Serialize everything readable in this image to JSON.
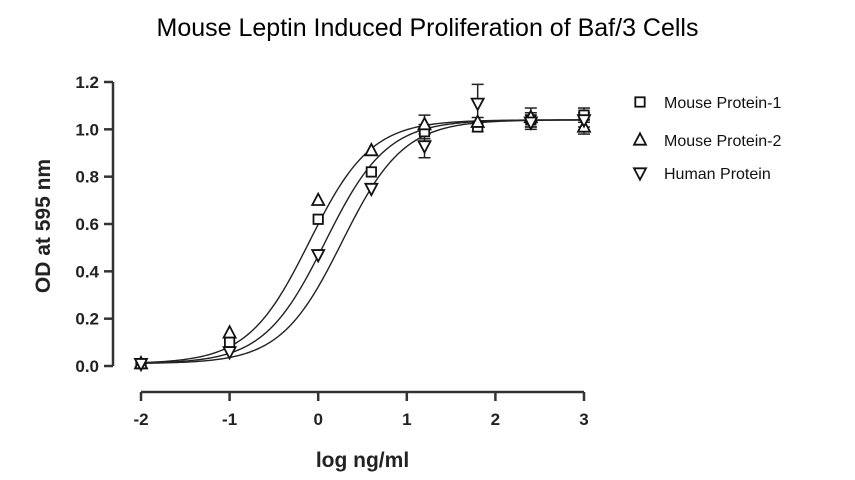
{
  "chart_data": {
    "type": "scatter",
    "title": "Mouse Leptin Induced Proliferation of Baf/3 Cells",
    "xlabel": "log ng/ml",
    "ylabel": "OD at 595 nm",
    "xlim": [
      -2,
      3
    ],
    "ylim": [
      0,
      1.2
    ],
    "xticks": [
      -2,
      -1,
      0,
      1,
      2,
      3
    ],
    "yticks": [
      0.0,
      0.2,
      0.4,
      0.6,
      0.8,
      1.0,
      1.2
    ],
    "xtick_labels": [
      "-2",
      "-1",
      "0",
      "1",
      "2",
      "3"
    ],
    "ytick_labels": [
      "0.0",
      "0.2",
      "0.4",
      "0.6",
      "0.8",
      "1.0",
      "1.2"
    ],
    "legend_position": "right",
    "grid": false,
    "fit": "four-parameter logistic curve per series",
    "series": [
      {
        "name": "Mouse Protein-1",
        "marker": "square",
        "x": [
          -2,
          -1,
          0,
          0.6,
          1.2,
          1.8,
          2.4,
          3
        ],
        "y": [
          0.01,
          0.1,
          0.62,
          0.82,
          0.99,
          1.01,
          1.04,
          1.06
        ],
        "err": [
          0,
          0,
          0,
          0,
          0.03,
          0.02,
          0.03,
          0.03
        ],
        "fit_params": {
          "bottom": 0.01,
          "top": 1.04,
          "logEC50": 0.08,
          "hill": 1.25
        }
      },
      {
        "name": "Mouse Protein-2",
        "marker": "triangle-up",
        "x": [
          -2,
          -1,
          0,
          0.6,
          1.2,
          1.8,
          2.4,
          3
        ],
        "y": [
          0.01,
          0.14,
          0.7,
          0.91,
          1.02,
          1.03,
          1.05,
          1.01
        ],
        "err": [
          0,
          0,
          0,
          0,
          0.04,
          0.02,
          0.04,
          0.03
        ],
        "fit_params": {
          "bottom": 0.01,
          "top": 1.04,
          "logEC50": -0.1,
          "hill": 1.25
        }
      },
      {
        "name": "Human Protein",
        "marker": "triangle-down",
        "x": [
          -2,
          -1,
          0,
          0.6,
          1.2,
          1.8,
          2.4,
          3
        ],
        "y": [
          0.01,
          0.06,
          0.47,
          0.75,
          0.93,
          1.11,
          1.03,
          1.04
        ],
        "err": [
          0,
          0,
          0,
          0,
          0.05,
          0.08,
          0.03,
          0.03
        ],
        "fit_params": {
          "bottom": 0.01,
          "top": 1.04,
          "logEC50": 0.27,
          "hill": 1.25
        }
      }
    ]
  }
}
